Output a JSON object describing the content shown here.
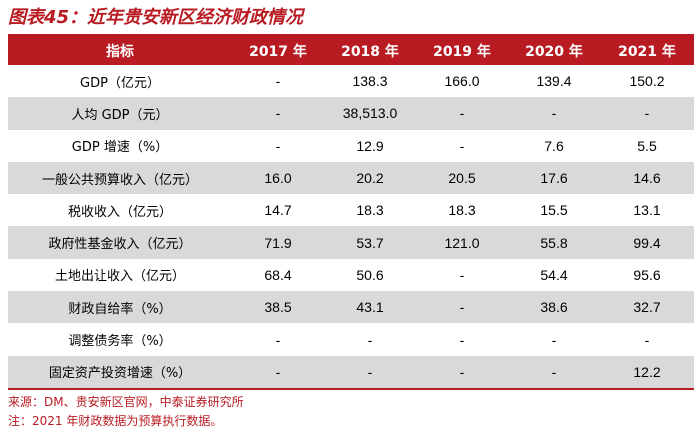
{
  "title": "图表45：近年贵安新区经济财政情况",
  "table": {
    "headers": [
      "指标",
      "2017 年",
      "2018 年",
      "2019 年",
      "2020 年",
      "2021 年"
    ],
    "rows": [
      [
        "GDP（亿元）",
        "-",
        "138.3",
        "166.0",
        "139.4",
        "150.2"
      ],
      [
        "人均 GDP（元）",
        "-",
        "38,513.0",
        "-",
        "-",
        "-"
      ],
      [
        "GDP 增速（%）",
        "-",
        "12.9",
        "-",
        "7.6",
        "5.5"
      ],
      [
        "一般公共预算收入（亿元）",
        "16.0",
        "20.2",
        "20.5",
        "17.6",
        "14.6"
      ],
      [
        "税收收入（亿元）",
        "14.7",
        "18.3",
        "18.3",
        "15.5",
        "13.1"
      ],
      [
        "政府性基金收入（亿元）",
        "71.9",
        "53.7",
        "121.0",
        "55.8",
        "99.4"
      ],
      [
        "土地出让收入（亿元）",
        "68.4",
        "50.6",
        "-",
        "54.4",
        "95.6"
      ],
      [
        "财政自给率（%）",
        "38.5",
        "43.1",
        "-",
        "38.6",
        "32.7"
      ],
      [
        "调整债务率（%）",
        "-",
        "-",
        "-",
        "-",
        "-"
      ],
      [
        "固定资产投资增速（%）",
        "-",
        "-",
        "-",
        "-",
        "12.2"
      ]
    ]
  },
  "notes": {
    "source": "来源：DM、贵安新区官网，中泰证券研究所",
    "remark": "注：2021 年财政数据为预算执行数据。"
  }
}
